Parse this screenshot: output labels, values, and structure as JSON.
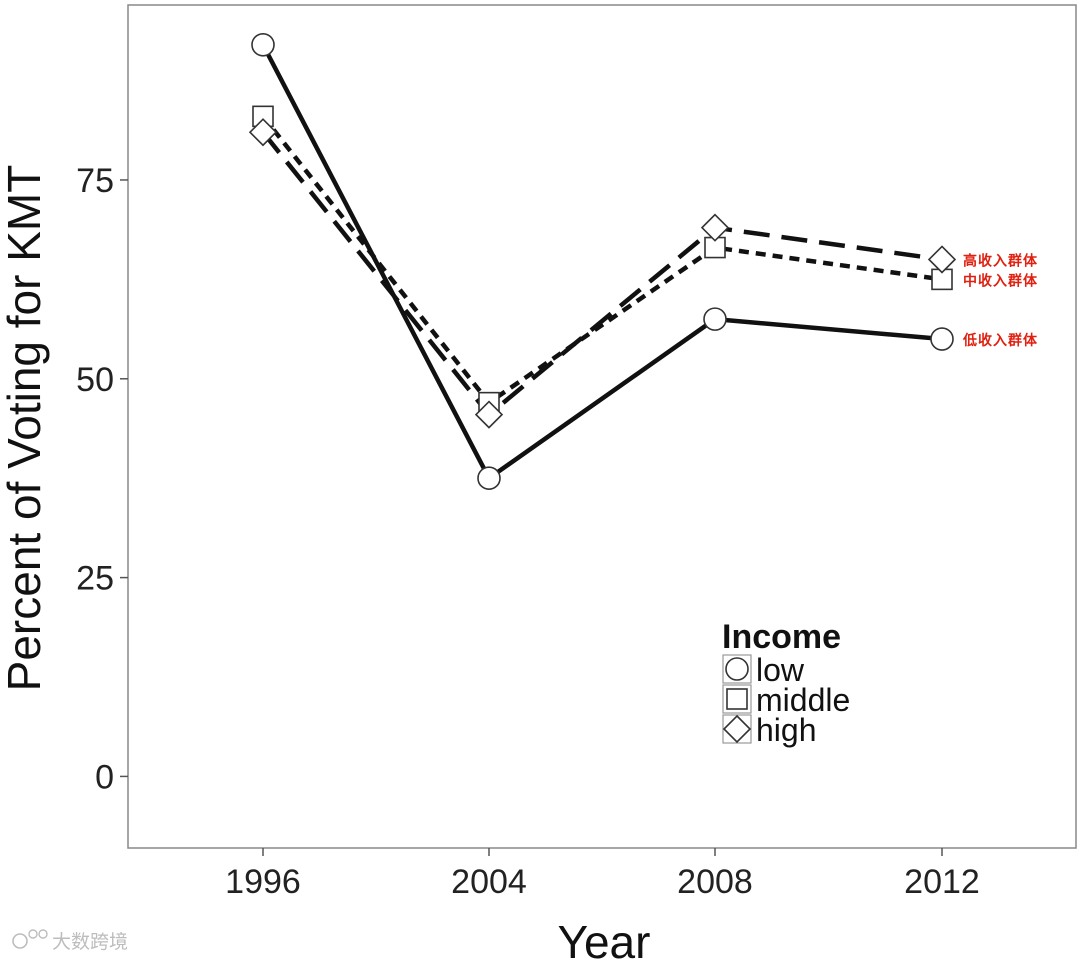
{
  "chart_data": {
    "type": "line",
    "xlabel": "Year",
    "ylabel": "Percent of Voting for KMT",
    "x": [
      "1996",
      "2004",
      "2008",
      "2012"
    ],
    "ylim": [
      -9,
      97
    ],
    "yticks": [
      0,
      25,
      50,
      75
    ],
    "grid": false,
    "legend": {
      "title": "Income",
      "position": "bottom-right"
    },
    "series": [
      {
        "name": "low",
        "marker": "circle",
        "line": "solid",
        "values": [
          92,
          37.5,
          57.5,
          55
        ]
      },
      {
        "name": "middle",
        "marker": "square",
        "line": "dotted",
        "values": [
          83,
          47,
          66.5,
          62.5
        ]
      },
      {
        "name": "high",
        "marker": "diamond",
        "line": "dashed",
        "values": [
          81,
          45.5,
          69,
          65
        ]
      }
    ],
    "annotations": [
      {
        "series": "high",
        "text": "高收入群体",
        "color": "#e02010"
      },
      {
        "series": "middle",
        "text": "中收入群体",
        "color": "#e02010"
      },
      {
        "series": "low",
        "text": "低收入群体",
        "color": "#e02010"
      }
    ]
  },
  "watermark": {
    "text": "大数跨境",
    "logo_icon": "brand-logo-icon"
  },
  "colors": {
    "line": "#111111",
    "marker_fill": "#ffffff",
    "marker_stroke": "#333333",
    "frame": "#888888",
    "annotation": "#e02010",
    "watermark": "#bdbdbd"
  }
}
